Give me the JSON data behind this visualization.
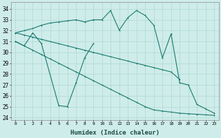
{
  "xlabel": "Humidex (Indice chaleur)",
  "bg_color": "#ceecea",
  "line_color": "#1a7a6e",
  "grid_color": "#aed8d4",
  "xlim": [
    -0.5,
    23.5
  ],
  "ylim": [
    23.8,
    34.6
  ],
  "yticks": [
    24,
    25,
    26,
    27,
    28,
    29,
    30,
    31,
    32,
    33,
    34
  ],
  "xticks": [
    0,
    1,
    2,
    3,
    4,
    5,
    6,
    7,
    8,
    9,
    10,
    11,
    12,
    13,
    14,
    15,
    16,
    17,
    18,
    19,
    20,
    21,
    22,
    23
  ],
  "curve_x": [
    0,
    1,
    2,
    3,
    4,
    5,
    6,
    7,
    8,
    9,
    10,
    11,
    12,
    13,
    14,
    15,
    16,
    17,
    18,
    19,
    20,
    21,
    22,
    23
  ],
  "curve_y": [
    31.8,
    32.0,
    32.2,
    32.5,
    32.7,
    32.8,
    32.9,
    33.0,
    32.8,
    33.0,
    33.0,
    33.85,
    32.05,
    33.2,
    33.85,
    33.4,
    32.5,
    29.5,
    31.7,
    27.2,
    27.0,
    25.2,
    24.8,
    24.4
  ],
  "diag1_x": [
    0,
    1,
    2,
    3,
    4,
    5,
    6,
    7,
    8,
    9,
    10,
    11,
    12,
    13,
    14,
    15,
    16,
    17,
    18,
    19
  ],
  "diag1_y": [
    31.8,
    31.6,
    31.4,
    31.2,
    31.0,
    30.8,
    30.6,
    30.4,
    30.2,
    30.0,
    29.8,
    29.6,
    29.4,
    29.2,
    29.0,
    28.8,
    28.6,
    28.4,
    28.2,
    27.5
  ],
  "diag2_x": [
    0,
    1,
    2,
    3,
    4,
    5,
    6,
    7,
    8,
    9,
    10,
    11,
    12,
    13,
    14,
    15,
    16,
    17,
    18,
    19,
    20,
    21,
    22,
    23
  ],
  "diag2_y": [
    31.0,
    30.6,
    30.2,
    29.8,
    29.4,
    29.0,
    28.6,
    28.2,
    27.8,
    27.4,
    27.0,
    26.6,
    26.2,
    25.8,
    25.4,
    25.0,
    24.7,
    24.6,
    24.5,
    24.4,
    24.35,
    24.3,
    24.25,
    24.2
  ],
  "wiggly_x": [
    0,
    1,
    2,
    3,
    5,
    6,
    7,
    8,
    9
  ],
  "wiggly_y": [
    31.0,
    30.6,
    31.8,
    30.8,
    25.1,
    25.0,
    27.2,
    29.5,
    30.8
  ]
}
